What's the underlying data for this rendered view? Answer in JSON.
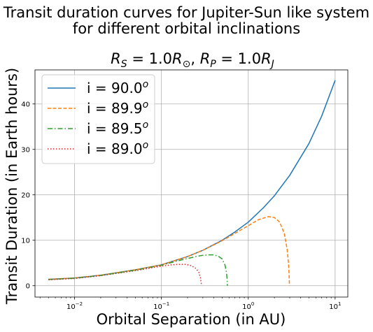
{
  "figure": {
    "title_line1": "Transit duration curves for Jupiter-Sun like system",
    "title_line2": "for different orbital inclinations"
  },
  "chart_data": {
    "type": "line",
    "title": "R_S = 1.0R_⊙, R_P = 1.0R_J",
    "xlabel": "Orbital Separation (in AU)",
    "ylabel": "Transit Duration (in Earth hours)",
    "xscale": "log",
    "xlim": [
      0.0035,
      14
    ],
    "ylim": [
      -2.5,
      47.5
    ],
    "x_ticks": [
      {
        "value": 0.01,
        "base": "10",
        "exp": "−2"
      },
      {
        "value": 0.1,
        "base": "10",
        "exp": "−1"
      },
      {
        "value": 1,
        "base": "10",
        "exp": "0"
      },
      {
        "value": 10,
        "base": "10",
        "exp": "1"
      }
    ],
    "y_ticks": [
      0,
      10,
      20,
      30,
      40
    ],
    "grid": true,
    "legend_position": "top-left",
    "series": [
      {
        "name": "i = 90.0",
        "name_sup": "o",
        "color": "#1f77b4",
        "dash": "solid",
        "points": [
          [
            0.005,
            1.4
          ],
          [
            0.01,
            1.7
          ],
          [
            0.02,
            2.3
          ],
          [
            0.05,
            3.5
          ],
          [
            0.1,
            4.6
          ],
          [
            0.2,
            6.4
          ],
          [
            0.3,
            7.8
          ],
          [
            0.5,
            10.0
          ],
          [
            0.7,
            11.8
          ],
          [
            1,
            14.0
          ],
          [
            1.5,
            17.2
          ],
          [
            2,
            19.8
          ],
          [
            3,
            24.3
          ],
          [
            5,
            31.3
          ],
          [
            7,
            37.3
          ],
          [
            10,
            45.2
          ]
        ]
      },
      {
        "name": "i = 89.9",
        "name_sup": "o",
        "color": "#ff7f0e",
        "dash": "dashed",
        "points": [
          [
            0.005,
            1.4
          ],
          [
            0.01,
            1.7
          ],
          [
            0.02,
            2.3
          ],
          [
            0.05,
            3.5
          ],
          [
            0.1,
            4.6
          ],
          [
            0.2,
            6.4
          ],
          [
            0.3,
            7.8
          ],
          [
            0.5,
            9.9
          ],
          [
            0.7,
            11.5
          ],
          [
            1,
            13.2
          ],
          [
            1.3,
            14.5
          ],
          [
            1.7,
            15.2
          ],
          [
            2.0,
            15.0
          ],
          [
            2.3,
            14.0
          ],
          [
            2.6,
            11.5
          ],
          [
            2.8,
            8.0
          ],
          [
            2.9,
            5.0
          ],
          [
            2.95,
            2.5
          ],
          [
            2.98,
            0
          ]
        ]
      },
      {
        "name": "i = 89.5",
        "name_sup": "o",
        "color": "#2ca02c",
        "dash": "dashdot",
        "points": [
          [
            0.005,
            1.35
          ],
          [
            0.01,
            1.65
          ],
          [
            0.02,
            2.25
          ],
          [
            0.05,
            3.4
          ],
          [
            0.1,
            4.5
          ],
          [
            0.15,
            5.4
          ],
          [
            0.2,
            6.0
          ],
          [
            0.25,
            6.4
          ],
          [
            0.3,
            6.7
          ],
          [
            0.35,
            6.8
          ],
          [
            0.4,
            6.8
          ],
          [
            0.45,
            6.5
          ],
          [
            0.5,
            5.9
          ],
          [
            0.54,
            4.5
          ],
          [
            0.56,
            3.0
          ],
          [
            0.57,
            1.5
          ],
          [
            0.575,
            0
          ]
        ]
      },
      {
        "name": "i = 89.0",
        "name_sup": "o",
        "color": "#d62728",
        "dash": "dotted",
        "points": [
          [
            0.005,
            1.3
          ],
          [
            0.01,
            1.6
          ],
          [
            0.02,
            2.2
          ],
          [
            0.05,
            3.3
          ],
          [
            0.08,
            4.0
          ],
          [
            0.1,
            4.3
          ],
          [
            0.13,
            4.6
          ],
          [
            0.16,
            4.7
          ],
          [
            0.19,
            4.7
          ],
          [
            0.22,
            4.4
          ],
          [
            0.25,
            3.8
          ],
          [
            0.27,
            2.9
          ],
          [
            0.28,
            2.0
          ],
          [
            0.285,
            1.0
          ],
          [
            0.29,
            0
          ]
        ]
      }
    ]
  }
}
